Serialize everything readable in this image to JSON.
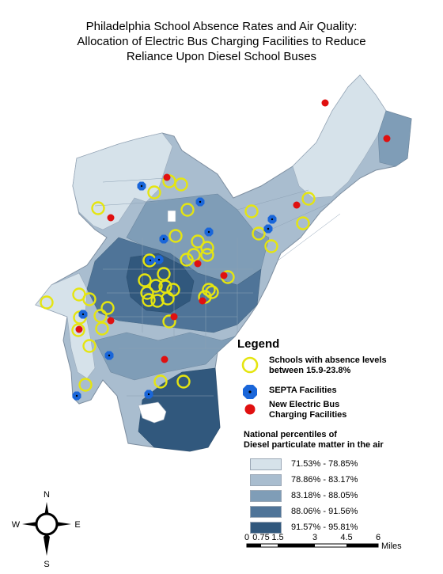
{
  "title": {
    "line1": "Philadelphia School Absence Rates and Air Quality:",
    "line2": "Allocation of Electric Bus Charging Facilities to Reduce",
    "line3": "Reliance Upon Diesel School Buses"
  },
  "colors": {
    "class1": "#d6e2ea",
    "class2": "#a9bdcf",
    "class3": "#7f9db7",
    "class4": "#4f7498",
    "class5": "#31587d",
    "school": "#e5e510",
    "septa": "#1a66d9",
    "charging": "#e01010"
  },
  "legend": {
    "title": "Legend",
    "schools_label_1": "Schools with absence levels",
    "schools_label_2": "between 15.9-23.8%",
    "septa_label": "SEPTA Facilities",
    "charging_label_1": "New Electric Bus",
    "charging_label_2": "Charging Facilities",
    "pct_title_1": "National percentiles of",
    "pct_title_2": "Diesel particulate matter in the air",
    "classes": [
      {
        "label": "71.53% - 78.85%"
      },
      {
        "label": "78.86% - 83.17%"
      },
      {
        "label": "83.18% - 88.05%"
      },
      {
        "label": "88.06% - 91.56%"
      },
      {
        "label": "91.57% - 95.81%"
      }
    ]
  },
  "north_arrow": {
    "n": "N",
    "s": "S",
    "e": "E",
    "w": "W"
  },
  "scale_bar": {
    "ticks": [
      "0",
      "0.75",
      "1.5",
      "3",
      "4.5",
      "6"
    ],
    "unit": "Miles"
  }
}
